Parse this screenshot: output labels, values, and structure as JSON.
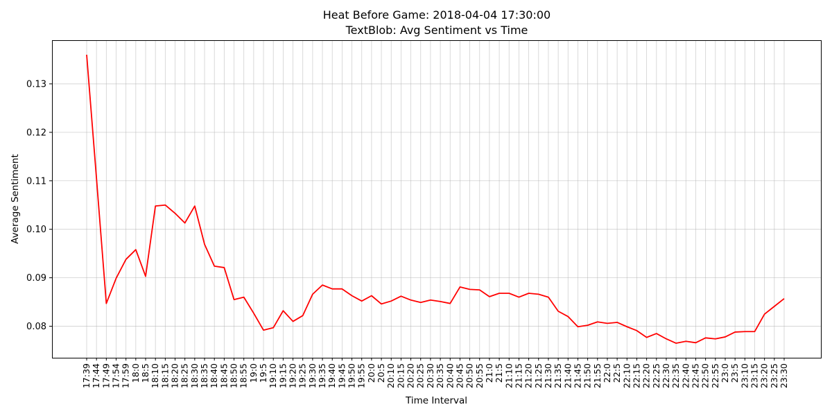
{
  "chart_data": {
    "type": "line",
    "title": "Heat Before Game: 2018-04-04 17:30:00",
    "subtitle": "TextBlob: Avg Sentiment vs Time",
    "xlabel": "Time Interval",
    "ylabel": "Average Sentiment",
    "ylim": [
      0.0735,
      0.139
    ],
    "yticks": [
      "0.08",
      "0.09",
      "0.10",
      "0.11",
      "0.12",
      "0.13"
    ],
    "grid": true,
    "line_color": "#ff0000",
    "categories": [
      "17:39",
      "17:44",
      "17:49",
      "17:54",
      "17:59",
      "18:0",
      "18:5",
      "18:10",
      "18:15",
      "18:20",
      "18:25",
      "18:30",
      "18:35",
      "18:40",
      "18:45",
      "18:50",
      "18:55",
      "19:0",
      "19:5",
      "19:10",
      "19:15",
      "19:20",
      "19:25",
      "19:30",
      "19:35",
      "19:40",
      "19:45",
      "19:50",
      "19:55",
      "20:0",
      "20:5",
      "20:10",
      "20:15",
      "20:20",
      "20:25",
      "20:30",
      "20:35",
      "20:40",
      "20:45",
      "20:50",
      "20:55",
      "21:0",
      "21:5",
      "21:10",
      "21:15",
      "21:20",
      "21:25",
      "21:30",
      "21:35",
      "21:40",
      "21:45",
      "21:50",
      "21:55",
      "22:0",
      "22:5",
      "22:10",
      "22:15",
      "22:20",
      "22:25",
      "22:30",
      "22:35",
      "22:40",
      "22:45",
      "22:50",
      "22:55",
      "23:0",
      "23:5",
      "23:10",
      "23:15",
      "23:20",
      "23:25",
      "23:30"
    ],
    "values": [
      0.136,
      0.1105,
      0.0847,
      0.0899,
      0.0938,
      0.0958,
      0.0903,
      0.1048,
      0.105,
      0.1033,
      0.1013,
      0.1048,
      0.0969,
      0.0924,
      0.0921,
      0.0855,
      0.086,
      0.0827,
      0.0792,
      0.0797,
      0.0832,
      0.081,
      0.0822,
      0.0866,
      0.0885,
      0.0877,
      0.0877,
      0.0863,
      0.0852,
      0.0863,
      0.0846,
      0.0852,
      0.0862,
      0.0854,
      0.0849,
      0.0854,
      0.0851,
      0.0847,
      0.0881,
      0.0876,
      0.0875,
      0.0861,
      0.0868,
      0.0868,
      0.086,
      0.0868,
      0.0866,
      0.086,
      0.0831,
      0.082,
      0.0799,
      0.0802,
      0.0809,
      0.0806,
      0.0808,
      0.0799,
      0.0791,
      0.0777,
      0.0785,
      0.0774,
      0.0765,
      0.0769,
      0.0766,
      0.0776,
      0.0774,
      0.0778,
      0.0788,
      0.0789,
      0.0789,
      0.0825,
      0.0841,
      0.0857
    ]
  }
}
